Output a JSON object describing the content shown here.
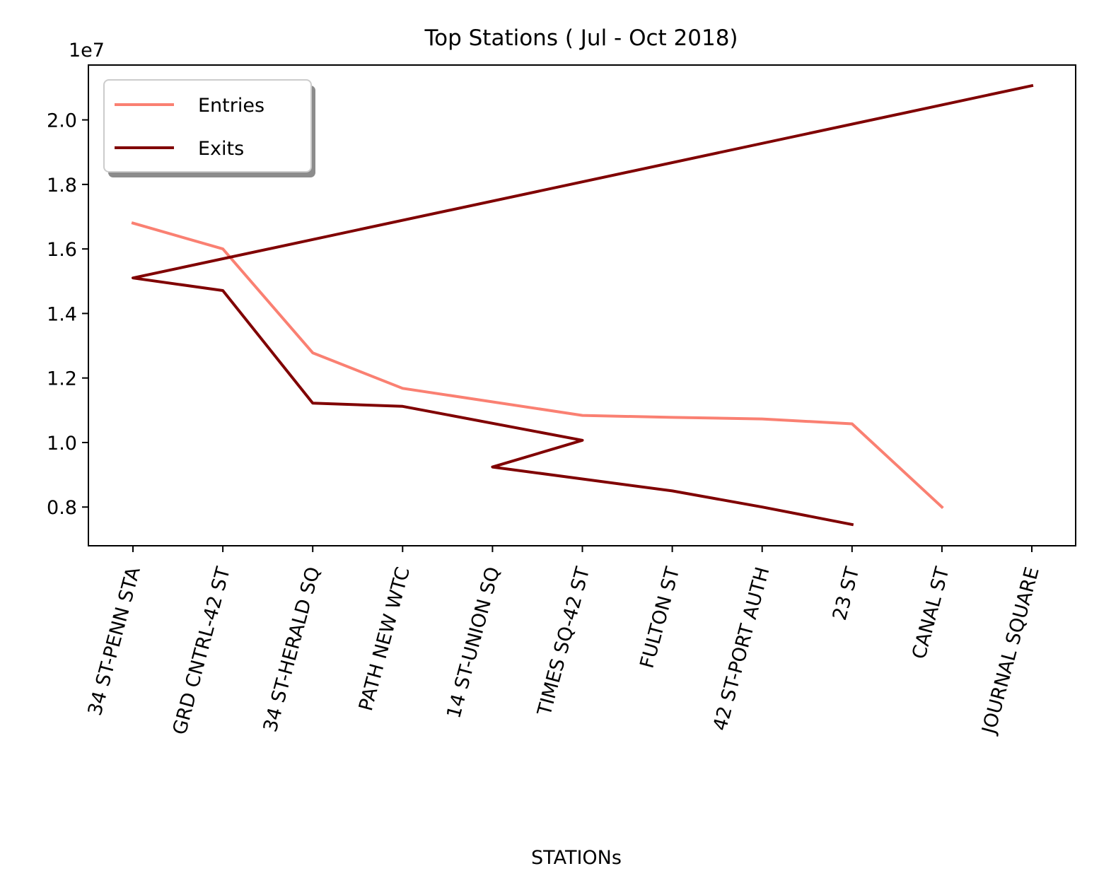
{
  "chart_data": {
    "type": "line",
    "title": "Top Stations ( Jul - Oct 2018)",
    "xlabel": "STATIONs",
    "ylabel": "",
    "y_offset_label": "1e7",
    "y_scale_multiplier": 10000000,
    "ylim": [
      0.68,
      2.17
    ],
    "yticks": [
      0.8,
      1.0,
      1.2,
      1.4,
      1.6,
      1.8,
      2.0
    ],
    "ytick_labels": [
      "0.8",
      "1.0",
      "1.2",
      "1.4",
      "1.6",
      "1.8",
      "2.0"
    ],
    "xtick_rotation_deg": 75,
    "categories": [
      "34 ST-PENN STA",
      "GRD CNTRL-42 ST",
      "34 ST-HERALD SQ",
      "PATH NEW WTC",
      "14 ST-UNION SQ",
      "TIMES SQ-42 ST",
      "FULTON ST",
      "42 ST-PORT AUTH",
      "23 ST",
      "CANAL ST",
      "JOURNAL SQUARE"
    ],
    "legend_position": "top-left",
    "legend_shadow": true,
    "grid": false,
    "series": [
      {
        "name": "Entries",
        "color": "#fa8072",
        "points": [
          {
            "x": "34 ST-PENN STA",
            "y": 1.68
          },
          {
            "x": "GRD CNTRL-42 ST",
            "y": 1.6
          },
          {
            "x": "34 ST-HERALD SQ",
            "y": 1.278
          },
          {
            "x": "PATH NEW WTC",
            "y": 1.168
          },
          {
            "x": "TIMES SQ-42 ST",
            "y": 1.084
          },
          {
            "x": "FULTON ST",
            "y": 1.078
          },
          {
            "x": "42 ST-PORT AUTH",
            "y": 1.073
          },
          {
            "x": "23 ST",
            "y": 1.058
          },
          {
            "x": "CANAL ST",
            "y": 0.8
          }
        ]
      },
      {
        "name": "Exits",
        "color": "#800000",
        "points": [
          {
            "x": "JOURNAL SQUARE",
            "y": 2.106
          },
          {
            "x": "34 ST-PENN STA",
            "y": 1.51
          },
          {
            "x": "GRD CNTRL-42 ST",
            "y": 1.471
          },
          {
            "x": "34 ST-HERALD SQ",
            "y": 1.122
          },
          {
            "x": "PATH NEW WTC",
            "y": 1.112
          },
          {
            "x": "TIMES SQ-42 ST",
            "y": 1.007
          },
          {
            "x": "14 ST-UNION SQ",
            "y": 0.924
          },
          {
            "x": "FULTON ST",
            "y": 0.85
          },
          {
            "x": "42 ST-PORT AUTH",
            "y": 0.8
          },
          {
            "x": "23 ST",
            "y": 0.746
          }
        ]
      }
    ]
  }
}
